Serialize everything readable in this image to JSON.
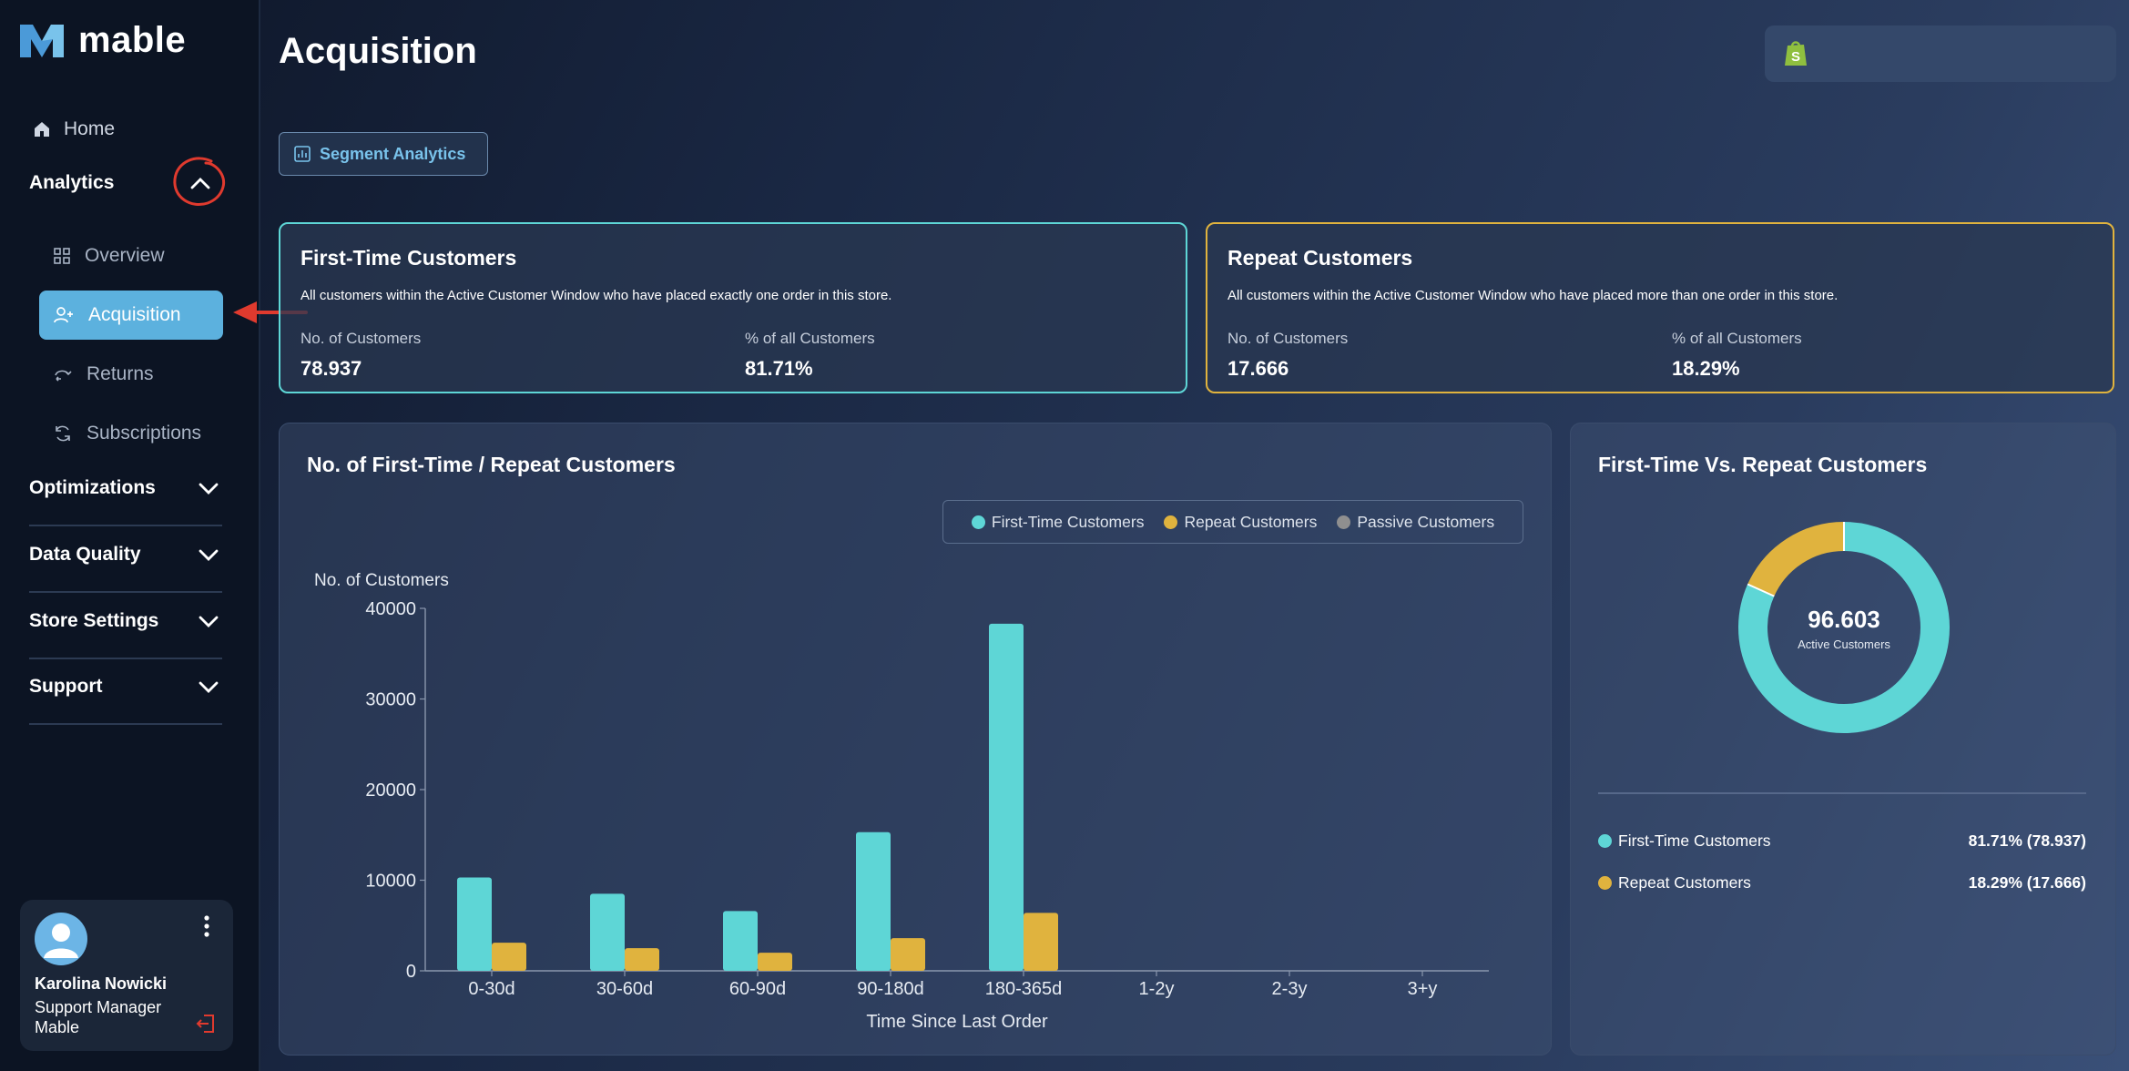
{
  "app": {
    "name": "mable"
  },
  "sidebar": {
    "home_label": "Home",
    "analytics_label": "Analytics",
    "sub_items": [
      {
        "label": "Overview",
        "icon": "grid-icon"
      },
      {
        "label": "Acquisition",
        "icon": "user-plus-icon",
        "active": true
      },
      {
        "label": "Returns",
        "icon": "return-arrow-icon"
      },
      {
        "label": "Subscriptions",
        "icon": "refresh-icon"
      }
    ],
    "sections": [
      {
        "label": "Optimizations"
      },
      {
        "label": "Data Quality"
      },
      {
        "label": "Store Settings"
      },
      {
        "label": "Support"
      }
    ],
    "user": {
      "name": "Karolina Nowicki",
      "role": "Support Manager",
      "company": "Mable"
    }
  },
  "page": {
    "title": "Acquisition",
    "segment_button": "Segment Analytics"
  },
  "kpis": {
    "first_time": {
      "title": "First-Time Customers",
      "desc": "All customers within the Active Customer Window who have placed exactly one order in this store.",
      "count_label": "No. of Customers",
      "count_value": "78.937",
      "pct_label": "% of all Customers",
      "pct_value": "81.71%"
    },
    "repeat": {
      "title": "Repeat Customers",
      "desc": "All customers within the Active Customer Window who have placed more than one order in this store.",
      "count_label": "No. of Customers",
      "count_value": "17.666",
      "pct_label": "% of all Customers",
      "pct_value": "18.29%"
    }
  },
  "bar_panel": {
    "title": "No. of First-Time / Repeat Customers",
    "legend": [
      "First-Time Customers",
      "Repeat Customers",
      "Passive Customers"
    ]
  },
  "pie_panel": {
    "title": "First-Time Vs. Repeat Customers",
    "center_value": "96.603",
    "center_label": "Active Customers",
    "rows": [
      {
        "label": "First-Time Customers",
        "value": "81.71% (78.937)"
      },
      {
        "label": "Repeat Customers",
        "value": "18.29% (17.666)"
      }
    ]
  },
  "colors": {
    "first_time": "#5ed6d6",
    "repeat": "#e0b33e",
    "passive": "#8f8f8f",
    "accent": "#5cb1de",
    "annotation": "#e03a2e"
  },
  "chart_data": [
    {
      "type": "bar",
      "title": "No. of First-Time / Repeat Customers",
      "xlabel": "Time Since Last Order",
      "ylabel": "No. of Customers",
      "categories": [
        "0-30d",
        "30-60d",
        "60-90d",
        "90-180d",
        "180-365d",
        "1-2y",
        "2-3y",
        "3+y"
      ],
      "yticks": [
        0,
        10000,
        20000,
        30000,
        40000
      ],
      "ylim": [
        0,
        40000
      ],
      "legend": "top-right",
      "series": [
        {
          "name": "First-Time Customers",
          "values": [
            10300,
            8500,
            6600,
            15300,
            38300,
            0,
            0,
            0
          ]
        },
        {
          "name": "Repeat Customers",
          "values": [
            3100,
            2500,
            2000,
            3600,
            6400,
            0,
            0,
            0
          ]
        },
        {
          "name": "Passive Customers",
          "values": [
            0,
            0,
            0,
            0,
            0,
            0,
            0,
            0
          ]
        }
      ]
    },
    {
      "type": "pie",
      "title": "First-Time Vs. Repeat Customers",
      "labels": [
        "First-Time Customers",
        "Repeat Customers"
      ],
      "values": [
        78937,
        17666
      ],
      "percentages": [
        81.71,
        18.29
      ]
    }
  ]
}
